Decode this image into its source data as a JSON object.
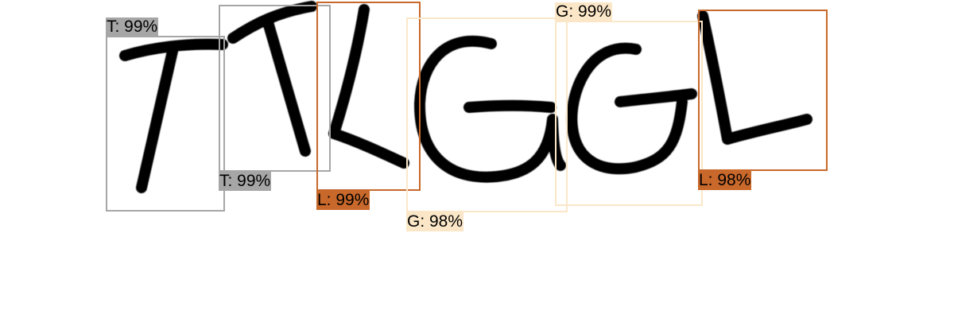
{
  "detections": [
    {
      "id": "t1",
      "label": "T: 99%",
      "color": "#a6a6a6"
    },
    {
      "id": "t2",
      "label": "T: 99%",
      "color": "#a6a6a6"
    },
    {
      "id": "l1",
      "label": "L: 99%",
      "color": "#c8682a"
    },
    {
      "id": "g1",
      "label": "G: 98%",
      "color": "#fbe7c8"
    },
    {
      "id": "g2",
      "label": "G: 99%",
      "color": "#fbe7c8"
    },
    {
      "id": "l2",
      "label": "L: 98%",
      "color": "#c8682a"
    }
  ]
}
